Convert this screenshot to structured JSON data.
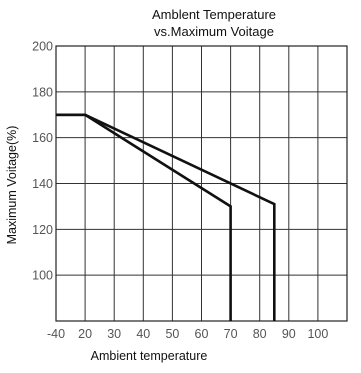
{
  "chart_data": {
    "type": "line",
    "title_line1": "Amblent Temperature",
    "title_line2": "vs.Maximum Voitage",
    "xlabel": "Ambient temperature",
    "ylabel": "Maximum Voitage(%)",
    "x_ticks": [
      "-40",
      "20",
      "30",
      "40",
      "50",
      "60",
      "70",
      "80",
      "90",
      "100"
    ],
    "y_ticks": [
      "200",
      "180",
      "160",
      "140",
      "120",
      "100"
    ],
    "y_tick_values": [
      200,
      180,
      160,
      140,
      120,
      100
    ],
    "ylim": [
      80,
      200
    ],
    "grid": true,
    "series": [
      {
        "x": [
          -40,
          20,
          70,
          70
        ],
        "y": [
          170,
          170,
          130,
          80
        ]
      },
      {
        "x": [
          -40,
          20,
          85,
          85
        ],
        "y": [
          170,
          170,
          131,
          80
        ]
      }
    ]
  }
}
